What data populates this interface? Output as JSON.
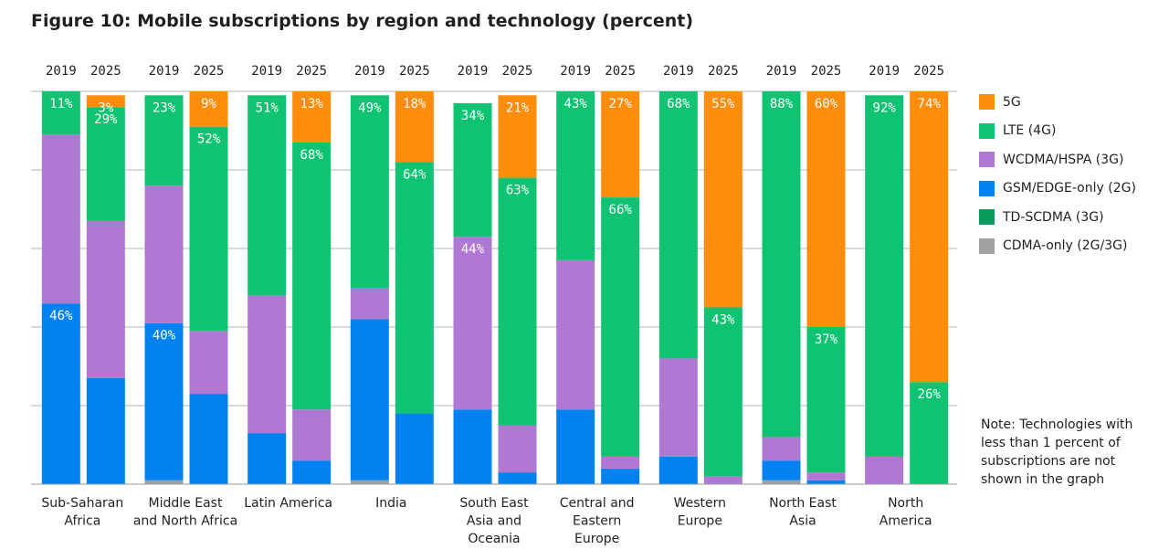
{
  "title": "Figure 10: Mobile subscriptions by region and technology (percent)",
  "note": "Note: Technologies with less than 1 percent of subscriptions are not shown in the graph",
  "colors": {
    "5G": "#ff8c0a",
    "LTE (4G)": "#0fc373",
    "WCDMA/HSPA (3G)": "#af78d2",
    "GSM/EDGE-only (2G)": "#0082f0",
    "TD-SCDMA (3G)": "#0a9a5a",
    "CDMA-only (2G/3G)": "#a0a0a0"
  },
  "chart_data": {
    "type": "bar",
    "stacked": true,
    "orientation": "vertical",
    "ylim": [
      0,
      100
    ],
    "grid": true,
    "legend_position": "right",
    "legend": [
      "5G",
      "LTE (4G)",
      "WCDMA/HSPA (3G)",
      "GSM/EDGE-only (2G)",
      "TD-SCDMA (3G)",
      "CDMA-only (2G/3G)"
    ],
    "stack_order_bottom_to_top": [
      "CDMA-only (2G/3G)",
      "GSM/EDGE-only (2G)",
      "WCDMA/HSPA (3G)",
      "LTE (4G)",
      "5G"
    ],
    "groups": [
      {
        "region": [
          "Sub-Saharan",
          "Africa"
        ],
        "bars": [
          {
            "year": "2019",
            "values": {
              "GSM/EDGE-only (2G)": 46,
              "WCDMA/HSPA (3G)": 43,
              "LTE (4G)": 11
            },
            "labels": {
              "LTE (4G)": "11%",
              "GSM/EDGE-only (2G)": "46%"
            }
          },
          {
            "year": "2025",
            "values": {
              "GSM/EDGE-only (2G)": 27,
              "WCDMA/HSPA (3G)": 40,
              "LTE (4G)": 29,
              "5G": 3
            },
            "labels": {
              "5G": "3%",
              "LTE (4G)": "29%"
            }
          }
        ]
      },
      {
        "region": [
          "Middle East",
          "and North Africa"
        ],
        "bars": [
          {
            "year": "2019",
            "values": {
              "CDMA-only (2G/3G)": 1,
              "GSM/EDGE-only (2G)": 40,
              "WCDMA/HSPA (3G)": 35,
              "LTE (4G)": 23
            },
            "labels": {
              "LTE (4G)": "23%",
              "GSM/EDGE-only (2G)": "40%"
            }
          },
          {
            "year": "2025",
            "values": {
              "GSM/EDGE-only (2G)": 23,
              "WCDMA/HSPA (3G)": 16,
              "LTE (4G)": 52,
              "5G": 9
            },
            "labels": {
              "5G": "9%",
              "LTE (4G)": "52%"
            }
          }
        ]
      },
      {
        "region": [
          "Latin America"
        ],
        "bars": [
          {
            "year": "2019",
            "values": {
              "GSM/EDGE-only (2G)": 13,
              "WCDMA/HSPA (3G)": 35,
              "LTE (4G)": 51
            },
            "labels": {
              "LTE (4G)": "51%"
            }
          },
          {
            "year": "2025",
            "values": {
              "GSM/EDGE-only (2G)": 6,
              "WCDMA/HSPA (3G)": 13,
              "LTE (4G)": 68,
              "5G": 13
            },
            "labels": {
              "5G": "13%",
              "LTE (4G)": "68%"
            }
          }
        ]
      },
      {
        "region": [
          "India"
        ],
        "bars": [
          {
            "year": "2019",
            "values": {
              "CDMA-only (2G/3G)": 1,
              "GSM/EDGE-only (2G)": 41,
              "WCDMA/HSPA (3G)": 8,
              "LTE (4G)": 49
            },
            "labels": {
              "LTE (4G)": "49%"
            }
          },
          {
            "year": "2025",
            "values": {
              "GSM/EDGE-only (2G)": 18,
              "LTE (4G)": 64,
              "5G": 18
            },
            "labels": {
              "5G": "18%",
              "LTE (4G)": "64%"
            }
          }
        ]
      },
      {
        "region": [
          "South East",
          "Asia and",
          "Oceania"
        ],
        "bars": [
          {
            "year": "2019",
            "values": {
              "GSM/EDGE-only (2G)": 19,
              "WCDMA/HSPA (3G)": 44,
              "LTE (4G)": 34
            },
            "labels": {
              "LTE (4G)": "34%",
              "WCDMA/HSPA (3G)": "44%"
            }
          },
          {
            "year": "2025",
            "values": {
              "GSM/EDGE-only (2G)": 3,
              "WCDMA/HSPA (3G)": 12,
              "LTE (4G)": 63,
              "5G": 21
            },
            "labels": {
              "5G": "21%",
              "LTE (4G)": "63%"
            }
          }
        ]
      },
      {
        "region": [
          "Central and",
          "Eastern",
          "Europe"
        ],
        "bars": [
          {
            "year": "2019",
            "values": {
              "GSM/EDGE-only (2G)": 19,
              "WCDMA/HSPA (3G)": 38,
              "LTE (4G)": 43
            },
            "labels": {
              "LTE (4G)": "43%"
            }
          },
          {
            "year": "2025",
            "values": {
              "GSM/EDGE-only (2G)": 4,
              "WCDMA/HSPA (3G)": 3,
              "LTE (4G)": 66,
              "5G": 27
            },
            "labels": {
              "5G": "27%",
              "LTE (4G)": "66%"
            }
          }
        ]
      },
      {
        "region": [
          "Western",
          "Europe"
        ],
        "bars": [
          {
            "year": "2019",
            "values": {
              "GSM/EDGE-only (2G)": 7,
              "WCDMA/HSPA (3G)": 25,
              "LTE (4G)": 68
            },
            "labels": {
              "LTE (4G)": "68%"
            }
          },
          {
            "year": "2025",
            "values": {
              "WCDMA/HSPA (3G)": 2,
              "LTE (4G)": 43,
              "5G": 55
            },
            "labels": {
              "5G": "55%",
              "LTE (4G)": "43%"
            }
          }
        ]
      },
      {
        "region": [
          "North East",
          "Asia"
        ],
        "bars": [
          {
            "year": "2019",
            "values": {
              "CDMA-only (2G/3G)": 1,
              "GSM/EDGE-only (2G)": 5,
              "WCDMA/HSPA (3G)": 6,
              "LTE (4G)": 88
            },
            "labels": {
              "LTE (4G)": "88%"
            }
          },
          {
            "year": "2025",
            "values": {
              "GSM/EDGE-only (2G)": 1,
              "WCDMA/HSPA (3G)": 2,
              "LTE (4G)": 37,
              "5G": 60
            },
            "labels": {
              "5G": "60%",
              "LTE (4G)": "37%"
            }
          }
        ]
      },
      {
        "region": [
          "North",
          "America"
        ],
        "bars": [
          {
            "year": "2019",
            "values": {
              "WCDMA/HSPA (3G)": 7,
              "LTE (4G)": 92
            },
            "labels": {
              "LTE (4G)": "92%"
            }
          },
          {
            "year": "2025",
            "values": {
              "LTE (4G)": 26,
              "5G": 74
            },
            "labels": {
              "5G": "74%",
              "LTE (4G)": "26%"
            }
          }
        ]
      }
    ]
  }
}
